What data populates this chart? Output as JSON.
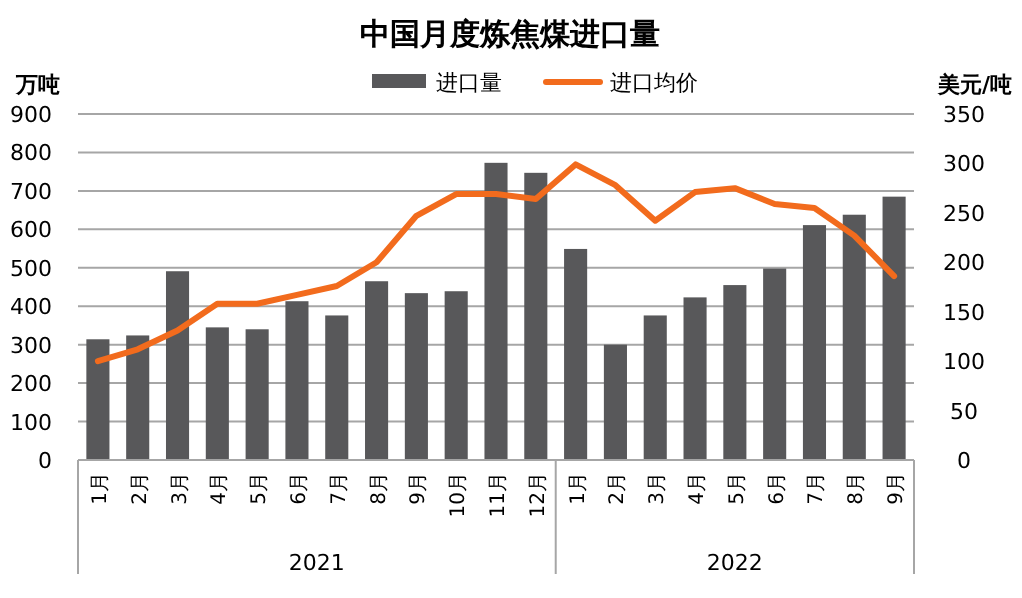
{
  "chart_data": {
    "type": "bar",
    "title": "中国月度炼焦煤进口量",
    "ylabel": "万吨",
    "y2label": "美元/吨",
    "categories": [
      "1月",
      "2月",
      "3月",
      "4月",
      "5月",
      "6月",
      "7月",
      "8月",
      "9月",
      "10月",
      "11月",
      "12月",
      "1月",
      "2月",
      "3月",
      "4月",
      "5月",
      "6月",
      "7月",
      "8月",
      "9月"
    ],
    "series": [
      {
        "name": "进口量",
        "color": "#58585a",
        "values": [
          314,
          324,
          491,
          345,
          340,
          413,
          376,
          465,
          434,
          439,
          773,
          747,
          549,
          300,
          376,
          423,
          455,
          498,
          611,
          638,
          685
        ]
      },
      {
        "name": "进口均价",
        "type": "line",
        "axis": "y2",
        "color": "#f26b1d",
        "values": [
          100,
          112,
          131,
          158,
          158,
          167,
          176,
          200,
          247,
          269,
          269,
          264,
          299,
          278,
          242,
          271,
          275,
          259,
          255,
          227,
          186
        ]
      }
    ],
    "ylim": [
      0,
      900
    ],
    "yticks": [
      0,
      100,
      200,
      300,
      400,
      500,
      600,
      700,
      800,
      900
    ],
    "y2lim": [
      0,
      350
    ],
    "y2ticks": [
      0,
      50,
      100,
      150,
      200,
      250,
      300,
      350
    ],
    "grid": "y",
    "legend": "top",
    "annotations": [
      "2021",
      "2022"
    ]
  }
}
